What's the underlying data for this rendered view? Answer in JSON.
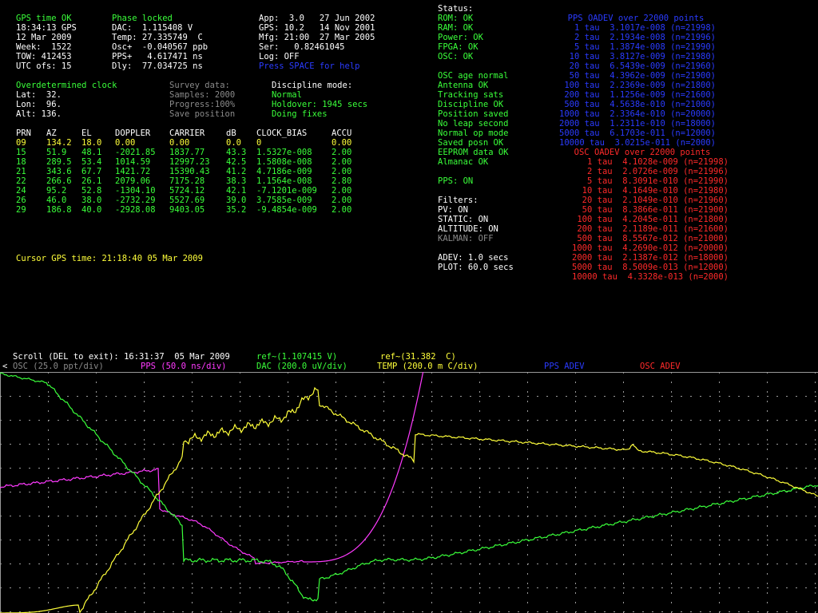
{
  "gps_block": {
    "status": "GPS time OK",
    "time": "18:34:13 GPS",
    "date": "12 Mar 2009",
    "week": "Week:  1522",
    "tow": "TOW: 412453",
    "utc_ofs": "UTC ofs: 15"
  },
  "receiver_block": {
    "phase": "Phase locked",
    "dac": "DAC:  1.115408 V",
    "temp": "Temp: 27.335749  C",
    "osc": "Osc+  -0.040567 ppb",
    "pps": "PPS+   4.617471 ns",
    "dly": "Dly:  77.034725 ns"
  },
  "version_block": {
    "app": "App:  3.0   27 Jun 2002",
    "gps": "GPS: 10.2   14 Nov 2001",
    "mfg": "Mfg: 21:00  27 Mar 2005",
    "ser": "Ser:   0.82461045",
    "log": "Log: OFF",
    "help": "Press SPACE for help"
  },
  "status_block": {
    "title": "Status:",
    "group1": [
      "ROM: OK",
      "RAM: OK",
      "Power: OK",
      "FPGA: OK",
      "OSC: OK"
    ],
    "group2": [
      "OSC age normal",
      "Antenna OK",
      "Tracking sats",
      "Discipline OK",
      "Position saved",
      "No leap second",
      "Normal op mode",
      "Saved posn OK",
      "EEPROM data OK",
      "Almanac OK"
    ],
    "pps": "PPS: ON",
    "filters_title": "Filters:",
    "filters_on": [
      "PV: ON",
      "STATIC: ON",
      "ALTITUDE: ON"
    ],
    "filters_off": "KALMAN: OFF",
    "adev": "ADEV: 1.0 secs",
    "plot": "PLOT: 60.0 secs"
  },
  "pps_adev": {
    "title": "PPS OADEV over 22000 points",
    "rows": [
      "1 tau  3.1017e-008 (n=21998)",
      "2 tau  2.1934e-008 (n=21996)",
      "5 tau  1.3874e-008 (n=21990)",
      "10 tau  3.8127e-009 (n=21980)",
      "20 tau  6.5439e-009 (n=21960)",
      "50 tau  4.3962e-009 (n=21900)",
      "100 tau  2.2369e-009 (n=21800)",
      "200 tau  1.1256e-009 (n=21600)",
      "500 tau  4.5638e-010 (n=21000)",
      "1000 tau  2.3364e-010 (n=20000)",
      "2000 tau  1.2311e-010 (n=18000)",
      "5000 tau  6.1703e-011 (n=12000)",
      "10000 tau  3.0215e-011 (n=2000)"
    ]
  },
  "osc_adev": {
    "title": "OSC OADEV over 22000 points",
    "rows": [
      "1 tau  4.1028e-009 (n=21998)",
      "2 tau  2.0726e-009 (n=21996)",
      "5 tau  8.3091e-010 (n=21990)",
      "10 tau  4.1649e-010 (n=21980)",
      "20 tau  2.1049e-010 (n=21960)",
      "50 tau  8.3866e-011 (n=21900)",
      "100 tau  4.2045e-011 (n=21800)",
      "200 tau  2.1189e-011 (n=21600)",
      "500 tau  8.5567e-012 (n=21000)",
      "1000 tau  4.2690e-012 (n=20000)",
      "2000 tau  2.1387e-012 (n=18000)",
      "5000 tau  8.5009e-013 (n=12000)",
      "10000 tau  4.3328e-013 (n=2000)"
    ]
  },
  "position_block": {
    "title": "Overdetermined clock",
    "lat": "Lat:  32.",
    "lon": "Lon:  96.",
    "alt": "Alt: 136. "
  },
  "survey_block": {
    "title": "Survey data:",
    "samples": "Samples: 2000",
    "progress": "Progress:100%",
    "save": "Save position"
  },
  "discipline_block": {
    "title": "Discipline mode:",
    "mode": "Normal",
    "holdover": "Holdover: 1945 secs",
    "fixes": "Doing fixes"
  },
  "sat_table": {
    "headers": [
      "PRN",
      "AZ",
      "EL",
      "DOPPLER",
      "CARRIER",
      "dB",
      "CLOCK_BIAS",
      "ACCU"
    ],
    "rows": [
      [
        "09",
        "134.2",
        "18.0",
        "0.00",
        "0.00",
        "0.0",
        "0",
        "0.00"
      ],
      [
        "15",
        "51.9",
        "48.1",
        "-2021.85",
        "1837.77",
        "43.3",
        "1.5327e-008",
        "2.00"
      ],
      [
        "18",
        "289.5",
        "53.4",
        "1014.59",
        "12997.23",
        "42.5",
        "1.5808e-008",
        "2.00"
      ],
      [
        "21",
        "343.6",
        "67.7",
        "1421.72",
        "15390.43",
        "41.2",
        "4.7186e-009",
        "2.00"
      ],
      [
        "22",
        "266.6",
        "26.1",
        "2079.06",
        "7175.28",
        "38.3",
        "1.1564e-008",
        "2.80"
      ],
      [
        "24",
        "95.2",
        "52.8",
        "-1304.10",
        "5724.12",
        "42.1",
        "-7.1201e-009",
        "2.00"
      ],
      [
        "26",
        "46.0",
        "38.0",
        "-2732.29",
        "5527.69",
        "39.0",
        "3.7585e-009",
        "2.00"
      ],
      [
        "29",
        "186.8",
        "40.0",
        "-2928.08",
        "9403.05",
        "35.2",
        "-9.4854e-009",
        "2.00"
      ]
    ]
  },
  "cursor_time": "Cursor GPS time: 21:18:40 05 Mar 2009",
  "scroll_bar": {
    "scroll": "Scroll (DEL to exit): 16:31:37  05 Mar 2009",
    "ref1": "ref~(1.107415 V)",
    "ref2": "ref~(31.382  C)"
  },
  "legend": {
    "arrow": "<",
    "osc": "OSC (25.0 ppt/div)",
    "pps": "PPS (50.0 ns/div)",
    "dac": "DAC (200.0 uV/div)",
    "temp": "TEMP (200.0 m C/div)",
    "pps_adev": "PPS ADEV",
    "osc_adev": "OSC ADEV"
  },
  "colors": {
    "pps": "#ff3aff",
    "dac": "#3aff3a",
    "temp": "#ffff3a",
    "grid": "#9a9a9a"
  }
}
